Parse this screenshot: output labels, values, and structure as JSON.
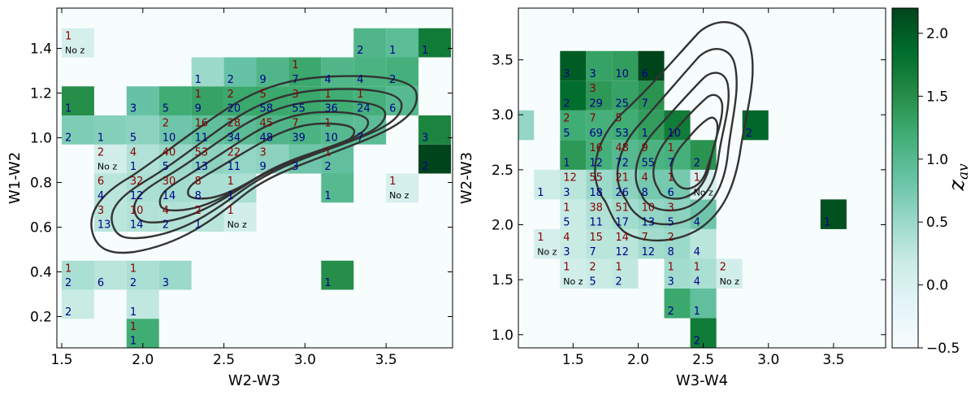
{
  "colors": {
    "count_red": "#8b0000",
    "count_blue": "#00008b",
    "contour": "#333333",
    "cmap": [
      "#f7fcfd",
      "#e5f5f9",
      "#ccece6",
      "#99d8c9",
      "#66c2a4",
      "#41ae76",
      "#238b45",
      "#006d2c",
      "#00441b"
    ]
  },
  "colorbar": {
    "label": "z_av",
    "label_main": "z",
    "label_sub": "av",
    "range": [
      -0.5,
      2.2
    ],
    "ticks": [
      "-0.5",
      "0.0",
      "0.5",
      "1.0",
      "1.5",
      "2.0"
    ]
  },
  "chart_data": [
    {
      "type": "heatmap",
      "xlabel": "W2-W3",
      "ylabel": "W1-W2",
      "xlim": [
        1.47,
        3.91
      ],
      "ylim": [
        0.06,
        1.58
      ],
      "xticks": [
        "1.5",
        "2.0",
        "2.5",
        "3.0",
        "3.5"
      ],
      "yticks": [
        "0.2",
        "0.4",
        "0.6",
        "0.8",
        "1.0",
        "1.2",
        "1.4"
      ],
      "grid": false,
      "bin_width": [
        0.2,
        0.13
      ],
      "cells": [
        {
          "x": 1.6,
          "y": 0.19,
          "z": 0.2,
          "blue": "2"
        },
        {
          "x": 2.0,
          "y": 0.19,
          "z": 0.25,
          "blue": "1"
        },
        {
          "x": 2.0,
          "y": 0.06,
          "z": 1.2,
          "red": "1",
          "blue": "1"
        },
        {
          "x": 1.6,
          "y": 0.32,
          "z": 0.4,
          "red": "1",
          "blue": "2"
        },
        {
          "x": 1.8,
          "y": 0.32,
          "z": 0.3,
          "blue": "6"
        },
        {
          "x": 2.0,
          "y": 0.32,
          "z": 0.4,
          "red": "1",
          "blue": "2"
        },
        {
          "x": 2.2,
          "y": 0.32,
          "z": 0.5,
          "blue": "3"
        },
        {
          "x": 3.2,
          "y": 0.32,
          "z": 1.5,
          "blue": "1"
        },
        {
          "x": 1.8,
          "y": 0.58,
          "z": 0.3,
          "red": "3",
          "blue": "13"
        },
        {
          "x": 2.0,
          "y": 0.58,
          "z": 0.35,
          "red": "10",
          "blue": "14"
        },
        {
          "x": 2.2,
          "y": 0.58,
          "z": 0.35,
          "red": "4",
          "blue": "2"
        },
        {
          "x": 2.4,
          "y": 0.58,
          "z": 0.3,
          "red": "2",
          "blue": "1"
        },
        {
          "x": 2.6,
          "y": 0.58,
          "z": 0.1,
          "red": "1",
          "noz": "No z"
        },
        {
          "x": 1.8,
          "y": 0.71,
          "z": 0.3,
          "red": "6",
          "blue": "4"
        },
        {
          "x": 2.0,
          "y": 0.71,
          "z": 0.4,
          "red": "32",
          "blue": "12"
        },
        {
          "x": 2.2,
          "y": 0.71,
          "z": 0.45,
          "red": "30",
          "blue": "14"
        },
        {
          "x": 2.4,
          "y": 0.71,
          "z": 0.4,
          "red": "8",
          "blue": "8"
        },
        {
          "x": 2.6,
          "y": 0.71,
          "z": 0.4,
          "red": "1",
          "blue": "1"
        },
        {
          "x": 3.2,
          "y": 0.71,
          "z": 1.0,
          "blue": "1"
        },
        {
          "x": 3.6,
          "y": 0.71,
          "z": 0.05,
          "red": "1",
          "noz": "No z"
        },
        {
          "x": 1.8,
          "y": 0.84,
          "z": 0.1,
          "red": "2",
          "noz": "No z"
        },
        {
          "x": 2.0,
          "y": 0.84,
          "z": 0.35,
          "red": "4",
          "blue": "1"
        },
        {
          "x": 2.2,
          "y": 0.84,
          "z": 0.5,
          "red": "40",
          "blue": "5"
        },
        {
          "x": 2.4,
          "y": 0.84,
          "z": 0.6,
          "red": "53",
          "blue": "13"
        },
        {
          "x": 2.6,
          "y": 0.84,
          "z": 0.55,
          "red": "22",
          "blue": "11"
        },
        {
          "x": 2.8,
          "y": 0.84,
          "z": 0.6,
          "red": "3",
          "blue": "9"
        },
        {
          "x": 3.0,
          "y": 0.84,
          "z": 0.8,
          "blue": "3"
        },
        {
          "x": 3.2,
          "y": 0.84,
          "z": 0.9,
          "red": "1",
          "blue": "2"
        },
        {
          "x": 3.8,
          "y": 0.84,
          "z": 2.2,
          "blue": "2"
        },
        {
          "x": 1.6,
          "y": 0.97,
          "z": 0.7,
          "blue": "2"
        },
        {
          "x": 1.8,
          "y": 0.97,
          "z": 0.65,
          "blue": "1"
        },
        {
          "x": 2.0,
          "y": 0.97,
          "z": 0.6,
          "blue": "5"
        },
        {
          "x": 2.2,
          "y": 0.97,
          "z": 0.8,
          "red": "2",
          "blue": "10"
        },
        {
          "x": 2.4,
          "y": 0.97,
          "z": 0.9,
          "red": "16",
          "blue": "11"
        },
        {
          "x": 2.6,
          "y": 0.97,
          "z": 0.95,
          "red": "28",
          "blue": "34"
        },
        {
          "x": 2.8,
          "y": 0.97,
          "z": 1.05,
          "red": "45",
          "blue": "48"
        },
        {
          "x": 3.0,
          "y": 0.97,
          "z": 1.1,
          "red": "7",
          "blue": "39"
        },
        {
          "x": 3.2,
          "y": 0.97,
          "z": 1.0,
          "red": "1",
          "blue": "10"
        },
        {
          "x": 3.4,
          "y": 0.97,
          "z": 0.95,
          "blue": "7"
        },
        {
          "x": 3.8,
          "y": 0.97,
          "z": 1.6,
          "blue": "3"
        },
        {
          "x": 1.6,
          "y": 1.1,
          "z": 1.5,
          "blue": "1"
        },
        {
          "x": 2.0,
          "y": 1.1,
          "z": 0.85,
          "blue": "3"
        },
        {
          "x": 2.2,
          "y": 1.1,
          "z": 1.2,
          "blue": "5"
        },
        {
          "x": 2.4,
          "y": 1.1,
          "z": 1.3,
          "red": "1",
          "blue": "9"
        },
        {
          "x": 2.6,
          "y": 1.1,
          "z": 1.25,
          "red": "2",
          "blue": "20"
        },
        {
          "x": 2.8,
          "y": 1.1,
          "z": 1.25,
          "red": "5",
          "blue": "58"
        },
        {
          "x": 3.0,
          "y": 1.1,
          "z": 1.25,
          "red": "3",
          "blue": "55"
        },
        {
          "x": 3.2,
          "y": 1.1,
          "z": 1.2,
          "red": "1",
          "blue": "36"
        },
        {
          "x": 3.4,
          "y": 1.1,
          "z": 1.15,
          "red": "1",
          "blue": "24"
        },
        {
          "x": 3.6,
          "y": 1.1,
          "z": 1.0,
          "blue": "6"
        },
        {
          "x": 1.6,
          "y": 1.36,
          "z": 0.05,
          "red": "1",
          "noz": "No z"
        },
        {
          "x": 2.4,
          "y": 1.23,
          "z": 0.5,
          "blue": "1"
        },
        {
          "x": 2.6,
          "y": 1.23,
          "z": 0.85,
          "blue": "2"
        },
        {
          "x": 2.8,
          "y": 1.23,
          "z": 1.05,
          "blue": "9"
        },
        {
          "x": 3.0,
          "y": 1.23,
          "z": 1.25,
          "red": "1",
          "blue": "7"
        },
        {
          "x": 3.2,
          "y": 1.23,
          "z": 1.05,
          "blue": "4"
        },
        {
          "x": 3.4,
          "y": 1.23,
          "z": 1.1,
          "blue": "4"
        },
        {
          "x": 3.6,
          "y": 1.23,
          "z": 1.15,
          "blue": "2"
        },
        {
          "x": 3.4,
          "y": 1.36,
          "z": 1.05,
          "blue": "2"
        },
        {
          "x": 3.6,
          "y": 1.36,
          "z": 0.95,
          "blue": "1"
        },
        {
          "x": 3.8,
          "y": 1.36,
          "z": 1.7,
          "blue": "1"
        }
      ]
    },
    {
      "type": "heatmap",
      "xlabel": "W3-W4",
      "ylabel": "W2-W3",
      "xlim": [
        1.08,
        3.9
      ],
      "ylim": [
        0.88,
        3.97
      ],
      "xticks": [
        "1.5",
        "2.0",
        "2.5",
        "3.0",
        "3.5"
      ],
      "yticks": [
        "1.0",
        "1.5",
        "2.0",
        "2.5",
        "3.0",
        "3.5"
      ],
      "grid": false,
      "bin_width": [
        0.2,
        0.27
      ],
      "cells": [
        {
          "x": 2.5,
          "y": 0.88,
          "z": 1.7,
          "blue": "2"
        },
        {
          "x": 2.3,
          "y": 1.15,
          "z": 1.25,
          "blue": "2"
        },
        {
          "x": 2.5,
          "y": 1.15,
          "z": 0.9,
          "blue": "1"
        },
        {
          "x": 1.5,
          "y": 1.42,
          "z": 0.1,
          "red": "1",
          "noz": "No z"
        },
        {
          "x": 1.7,
          "y": 1.42,
          "z": 0.2,
          "red": "2",
          "blue": "5"
        },
        {
          "x": 1.9,
          "y": 1.42,
          "z": 0.25,
          "red": "1",
          "blue": "2"
        },
        {
          "x": 2.3,
          "y": 1.42,
          "z": 0.45,
          "red": "1",
          "blue": "3"
        },
        {
          "x": 2.5,
          "y": 1.42,
          "z": 0.4,
          "red": "1",
          "blue": "4"
        },
        {
          "x": 2.7,
          "y": 1.42,
          "z": 0.1,
          "red": "2",
          "noz": "No z"
        },
        {
          "x": 1.3,
          "y": 1.69,
          "z": 0.05,
          "red": "1",
          "noz": "No z"
        },
        {
          "x": 1.5,
          "y": 1.69,
          "z": 0.2,
          "red": "4",
          "blue": "3"
        },
        {
          "x": 1.7,
          "y": 1.69,
          "z": 0.3,
          "red": "15",
          "blue": "7"
        },
        {
          "x": 1.9,
          "y": 1.69,
          "z": 0.3,
          "red": "14",
          "blue": "12"
        },
        {
          "x": 2.1,
          "y": 1.69,
          "z": 0.45,
          "red": "7",
          "blue": "12"
        },
        {
          "x": 2.3,
          "y": 1.69,
          "z": 0.5,
          "red": "2",
          "blue": "8"
        },
        {
          "x": 2.5,
          "y": 1.69,
          "z": 0.3,
          "blue": "4"
        },
        {
          "x": 1.5,
          "y": 1.96,
          "z": 0.2,
          "red": "1",
          "blue": "5"
        },
        {
          "x": 1.7,
          "y": 1.96,
          "z": 0.35,
          "red": "38",
          "blue": "11"
        },
        {
          "x": 1.9,
          "y": 1.96,
          "z": 0.45,
          "red": "51",
          "blue": "17"
        },
        {
          "x": 2.1,
          "y": 1.96,
          "z": 0.55,
          "red": "10",
          "blue": "13"
        },
        {
          "x": 2.3,
          "y": 1.96,
          "z": 0.6,
          "red": "3",
          "blue": "5"
        },
        {
          "x": 2.5,
          "y": 1.96,
          "z": 0.8,
          "blue": "4"
        },
        {
          "x": 3.5,
          "y": 1.96,
          "z": 2.1,
          "blue": "1"
        },
        {
          "x": 1.3,
          "y": 2.23,
          "z": 0.15,
          "blue": "1"
        },
        {
          "x": 1.5,
          "y": 2.23,
          "z": 0.3,
          "red": "12",
          "blue": "3"
        },
        {
          "x": 1.7,
          "y": 2.23,
          "z": 0.5,
          "red": "55",
          "blue": "18"
        },
        {
          "x": 1.9,
          "y": 2.23,
          "z": 0.6,
          "red": "21",
          "blue": "26"
        },
        {
          "x": 2.1,
          "y": 2.23,
          "z": 0.75,
          "red": "4",
          "blue": "8"
        },
        {
          "x": 2.3,
          "y": 2.23,
          "z": 0.75,
          "red": "1",
          "blue": "6"
        },
        {
          "x": 2.5,
          "y": 2.23,
          "z": 0.05,
          "red": "1",
          "noz": "No z"
        },
        {
          "x": 1.5,
          "y": 2.5,
          "z": 1.4,
          "blue": "1"
        },
        {
          "x": 1.7,
          "y": 2.5,
          "z": 1.15,
          "red": "16",
          "blue": "12"
        },
        {
          "x": 1.9,
          "y": 2.5,
          "z": 1.0,
          "red": "48",
          "blue": "72"
        },
        {
          "x": 2.1,
          "y": 2.5,
          "z": 1.1,
          "red": "9",
          "blue": "55"
        },
        {
          "x": 2.3,
          "y": 2.5,
          "z": 1.15,
          "red": "1",
          "blue": "7"
        },
        {
          "x": 2.5,
          "y": 2.5,
          "z": 1.45,
          "blue": "2"
        },
        {
          "x": 1.1,
          "y": 2.77,
          "z": 0.55,
          "blue": "1"
        },
        {
          "x": 1.5,
          "y": 2.77,
          "z": 1.2,
          "red": "2",
          "blue": "5"
        },
        {
          "x": 1.7,
          "y": 2.77,
          "z": 1.15,
          "red": "7",
          "blue": "69"
        },
        {
          "x": 1.9,
          "y": 2.77,
          "z": 1.2,
          "red": "5",
          "blue": "53"
        },
        {
          "x": 2.1,
          "y": 2.77,
          "z": 1.35,
          "blue": "1"
        },
        {
          "x": 2.3,
          "y": 2.77,
          "z": 1.7,
          "blue": "10"
        },
        {
          "x": 2.9,
          "y": 2.77,
          "z": 1.9,
          "blue": "2"
        },
        {
          "x": 1.5,
          "y": 3.04,
          "z": 1.85,
          "blue": "2"
        },
        {
          "x": 1.7,
          "y": 3.04,
          "z": 1.4,
          "red": "3",
          "blue": "29"
        },
        {
          "x": 1.9,
          "y": 3.04,
          "z": 1.3,
          "blue": "25"
        },
        {
          "x": 2.1,
          "y": 3.04,
          "z": 1.45,
          "blue": "7"
        },
        {
          "x": 1.5,
          "y": 3.31,
          "z": 2.0,
          "blue": "3"
        },
        {
          "x": 1.7,
          "y": 3.31,
          "z": 1.3,
          "blue": "3"
        },
        {
          "x": 1.9,
          "y": 3.31,
          "z": 1.35,
          "blue": "10"
        },
        {
          "x": 2.1,
          "y": 3.31,
          "z": 2.25,
          "blue": "6"
        }
      ]
    }
  ]
}
